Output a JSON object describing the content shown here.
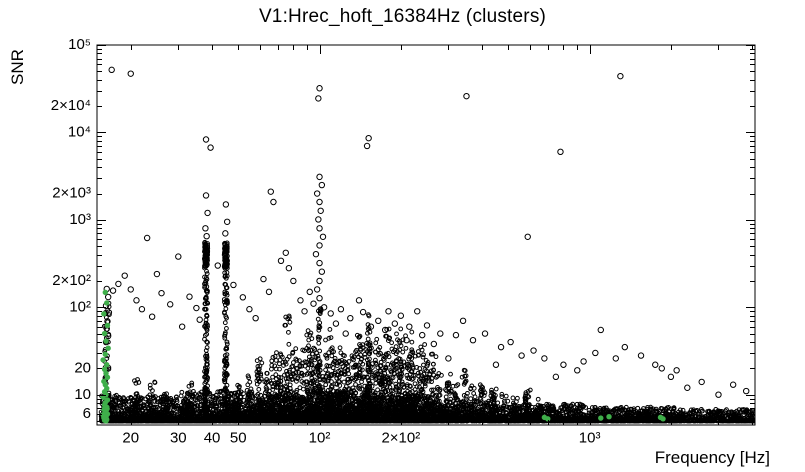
{
  "chart_data": {
    "type": "scatter",
    "title": "V1:Hrec_hoft_16384Hz (clusters)",
    "xlabel": "Frequency [Hz]",
    "ylabel": "SNR",
    "x_scale": "log",
    "y_scale": "log",
    "xlim": [
      15,
      4096
    ],
    "ylim": [
      4.5,
      100000
    ],
    "grid": false,
    "legend": false,
    "marker_styles": {
      "clusters": "open-circle-black",
      "selected": "filled-circle-green"
    },
    "colors": {
      "points": "#000000",
      "selected": "#3fae4a",
      "frame": "#000000",
      "background": "#ffffff"
    },
    "seed": 1337,
    "x_ticks": [
      {
        "v": 20,
        "label": "20"
      },
      {
        "v": 30,
        "label": "30"
      },
      {
        "v": 40,
        "label": "40"
      },
      {
        "v": 50,
        "label": "50"
      },
      {
        "v": 100,
        "label": "10²"
      },
      {
        "v": 200,
        "label": "2×10²"
      },
      {
        "v": 1000,
        "label": "10³"
      }
    ],
    "y_ticks": [
      {
        "v": 100000,
        "label": "10⁵"
      },
      {
        "v": 20000,
        "label": "2×10⁴"
      },
      {
        "v": 10000,
        "label": "10⁴"
      },
      {
        "v": 2000,
        "label": "2×10³"
      },
      {
        "v": 1000,
        "label": "10³"
      },
      {
        "v": 200,
        "label": "2×10²"
      },
      {
        "v": 100,
        "label": "10²"
      },
      {
        "v": 20,
        "label": "20"
      },
      {
        "v": 10,
        "label": "10"
      },
      {
        "v": 6,
        "label": "6"
      }
    ],
    "baseline_band": [
      [
        15.5,
        18,
        220,
        10
      ],
      [
        18,
        30,
        600,
        9.5
      ],
      [
        30,
        55,
        750,
        11
      ],
      [
        55,
        90,
        650,
        10
      ],
      [
        90,
        130,
        600,
        11
      ],
      [
        130,
        260,
        900,
        10
      ],
      [
        260,
        500,
        550,
        8.5
      ],
      [
        500,
        1000,
        600,
        7.8
      ],
      [
        1000,
        2100,
        650,
        7.2
      ],
      [
        2100,
        4096,
        400,
        6.8
      ]
    ],
    "columns": [
      [
        16.3,
        70,
        150,
        0.02
      ],
      [
        21,
        35,
        18
      ],
      [
        24,
        30,
        14
      ],
      [
        27,
        30,
        12
      ],
      [
        33,
        35,
        16
      ],
      [
        38,
        150,
        520,
        0.012
      ],
      [
        45,
        150,
        520,
        0.012
      ],
      [
        50,
        40,
        14
      ],
      [
        55,
        40,
        18
      ],
      [
        60,
        50,
        26
      ],
      [
        64,
        40,
        20
      ],
      [
        68,
        55,
        42
      ],
      [
        72,
        45,
        30
      ],
      [
        76,
        60,
        85
      ],
      [
        80,
        45,
        38
      ],
      [
        84,
        40,
        26
      ],
      [
        88,
        45,
        34
      ],
      [
        92,
        55,
        55
      ],
      [
        96,
        45,
        40
      ],
      [
        100,
        90,
        110,
        0.012
      ],
      [
        105,
        50,
        45
      ],
      [
        110,
        55,
        60
      ],
      [
        116,
        45,
        30
      ],
      [
        122,
        45,
        36
      ],
      [
        128,
        40,
        26
      ],
      [
        134,
        45,
        32
      ],
      [
        140,
        60,
        48
      ],
      [
        146,
        50,
        40
      ],
      [
        152,
        90,
        85,
        0.012
      ],
      [
        158,
        50,
        36
      ],
      [
        165,
        55,
        44
      ],
      [
        172,
        45,
        30
      ],
      [
        180,
        60,
        60
      ],
      [
        188,
        50,
        40
      ],
      [
        197,
        70,
        72
      ],
      [
        207,
        55,
        48
      ],
      [
        217,
        60,
        56
      ],
      [
        228,
        45,
        32
      ],
      [
        240,
        45,
        38
      ],
      [
        252,
        40,
        26
      ],
      [
        265,
        40,
        30
      ],
      [
        280,
        35,
        22
      ],
      [
        300,
        35,
        18
      ],
      [
        320,
        30,
        16
      ],
      [
        345,
        35,
        20
      ],
      [
        370,
        30,
        14
      ],
      [
        400,
        30,
        13
      ],
      [
        440,
        35,
        12
      ],
      [
        480,
        25,
        11
      ],
      [
        530,
        25,
        10
      ],
      [
        590,
        30,
        12
      ],
      [
        650,
        20,
        9
      ],
      [
        720,
        20,
        9
      ]
    ],
    "blobs": [
      [
        38,
        290,
        560,
        60,
        0.012
      ],
      [
        45,
        290,
        560,
        60,
        0.012
      ]
    ],
    "outliers": [
      [
        17,
        52000
      ],
      [
        20,
        47000
      ],
      [
        100,
        32000
      ],
      [
        99,
        24500
      ],
      [
        350,
        26000
      ],
      [
        1300,
        44000
      ],
      [
        38,
        8300
      ],
      [
        39.5,
        6700
      ],
      [
        152,
        8600
      ],
      [
        150,
        7000
      ],
      [
        780,
        6000
      ],
      [
        100,
        3100
      ],
      [
        102,
        2500
      ],
      [
        98,
        2000
      ],
      [
        100,
        1600
      ],
      [
        101,
        1270
      ],
      [
        99,
        1010
      ],
      [
        100,
        800
      ],
      [
        103,
        640
      ],
      [
        100,
        510
      ],
      [
        97,
        405
      ],
      [
        100,
        320
      ],
      [
        102,
        255
      ],
      [
        100,
        200
      ],
      [
        98,
        160
      ],
      [
        100,
        127
      ],
      [
        104,
        100
      ],
      [
        38,
        1900
      ],
      [
        38.5,
        1200
      ],
      [
        37.8,
        800
      ],
      [
        38.2,
        650
      ],
      [
        45,
        1500
      ],
      [
        45.5,
        950
      ],
      [
        44.8,
        700
      ],
      [
        66,
        2100
      ],
      [
        67.5,
        1600
      ],
      [
        23,
        620
      ],
      [
        30,
        380
      ],
      [
        25,
        240
      ],
      [
        19,
        230
      ],
      [
        20,
        160
      ],
      [
        21,
        120
      ],
      [
        22,
        95
      ],
      [
        24,
        78
      ],
      [
        26,
        145
      ],
      [
        28,
        108
      ],
      [
        31,
        60
      ],
      [
        33,
        132
      ],
      [
        35,
        98
      ],
      [
        36,
        72
      ],
      [
        18,
        185
      ],
      [
        17.2,
        155
      ],
      [
        16.3,
        162
      ],
      [
        16.5,
        131
      ],
      [
        16.2,
        104
      ],
      [
        16.6,
        87
      ],
      [
        16.4,
        69
      ],
      [
        16.3,
        57
      ],
      [
        16.5,
        47
      ],
      [
        16.2,
        40
      ],
      [
        42,
        300
      ],
      [
        48,
        180
      ],
      [
        52,
        130
      ],
      [
        55,
        95
      ],
      [
        58,
        75
      ],
      [
        62,
        210
      ],
      [
        65,
        150
      ],
      [
        72,
        340
      ],
      [
        75,
        420
      ],
      [
        77,
        280
      ],
      [
        80,
        200
      ],
      [
        85,
        120
      ],
      [
        88,
        90
      ],
      [
        92,
        150
      ],
      [
        95,
        110
      ],
      [
        110,
        85
      ],
      [
        115,
        65
      ],
      [
        120,
        95
      ],
      [
        125,
        50
      ],
      [
        130,
        75
      ],
      [
        140,
        120
      ],
      [
        145,
        88
      ],
      [
        155,
        60
      ],
      [
        165,
        70
      ],
      [
        175,
        55
      ],
      [
        180,
        90
      ],
      [
        190,
        65
      ],
      [
        200,
        80
      ],
      [
        210,
        42
      ],
      [
        215,
        60
      ],
      [
        230,
        90
      ],
      [
        240,
        48
      ],
      [
        250,
        62
      ],
      [
        265,
        38
      ],
      [
        280,
        50
      ],
      [
        300,
        26
      ],
      [
        320,
        48
      ],
      [
        340,
        70
      ],
      [
        370,
        42
      ],
      [
        410,
        50
      ],
      [
        450,
        22
      ],
      [
        470,
        35
      ],
      [
        510,
        40
      ],
      [
        560,
        28
      ],
      [
        590,
        640
      ],
      [
        620,
        32
      ],
      [
        680,
        26
      ],
      [
        750,
        16
      ],
      [
        800,
        22
      ],
      [
        900,
        19
      ],
      [
        950,
        24
      ],
      [
        1050,
        30
      ],
      [
        1100,
        55
      ],
      [
        1250,
        26
      ],
      [
        1350,
        35
      ],
      [
        1550,
        28
      ],
      [
        1750,
        22
      ],
      [
        1850,
        20
      ],
      [
        2000,
        16
      ],
      [
        2100,
        19
      ],
      [
        2300,
        12
      ],
      [
        2600,
        14
      ],
      [
        3000,
        10
      ],
      [
        3400,
        13
      ],
      [
        3800,
        11
      ]
    ],
    "green_points": [
      [
        16.1,
        148
      ],
      [
        16.3,
        112
      ],
      [
        15.9,
        84
      ],
      [
        16.4,
        62
      ],
      [
        16.0,
        50
      ],
      [
        16.2,
        41
      ],
      [
        16.5,
        34
      ],
      [
        16.1,
        29
      ],
      [
        15.8,
        25
      ],
      [
        16.3,
        22
      ],
      [
        16.0,
        19.5
      ],
      [
        16.2,
        17.5
      ],
      [
        16.4,
        15.8
      ],
      [
        15.9,
        14.2
      ],
      [
        16.1,
        13
      ],
      [
        16.3,
        11.8
      ],
      [
        16.0,
        10.8
      ],
      [
        16.2,
        10
      ],
      [
        15.8,
        9.3
      ],
      [
        16.4,
        8.7
      ],
      [
        16.1,
        8.1
      ],
      [
        16.0,
        7.6
      ],
      [
        16.3,
        7.2
      ],
      [
        15.9,
        6.8
      ],
      [
        16.2,
        6.5
      ],
      [
        16.1,
        6.2
      ],
      [
        16.4,
        6.0
      ],
      [
        16.0,
        5.8
      ],
      [
        16.2,
        5.6
      ],
      [
        15.9,
        5.45
      ],
      [
        16.1,
        5.3
      ],
      [
        16.3,
        5.2
      ],
      [
        16.0,
        5.1
      ],
      [
        16.2,
        5.0
      ],
      [
        15.8,
        5.9
      ],
      [
        16.35,
        6.9
      ],
      [
        680,
        5.5
      ],
      [
        700,
        5.3
      ],
      [
        1100,
        5.4
      ],
      [
        1180,
        5.6
      ],
      [
        1830,
        5.5
      ],
      [
        1870,
        5.3
      ]
    ]
  }
}
